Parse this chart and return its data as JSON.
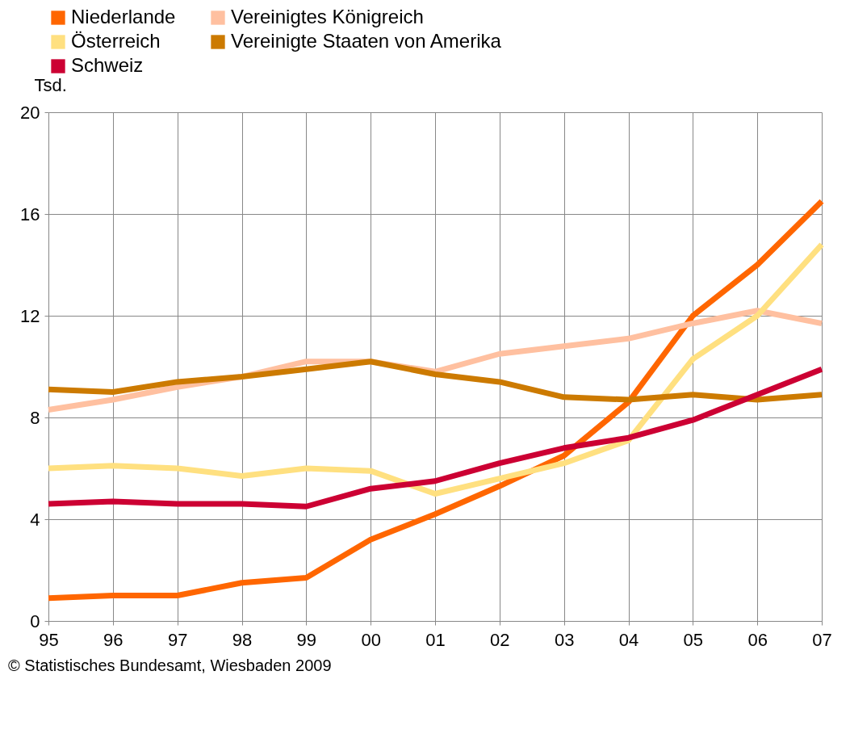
{
  "chart_data": {
    "type": "line",
    "ylabel": "Tsd.",
    "categories": [
      "95",
      "96",
      "97",
      "98",
      "99",
      "00",
      "01",
      "02",
      "03",
      "04",
      "05",
      "06",
      "07"
    ],
    "series": [
      {
        "name": "Niederlande",
        "color": "#ff6600",
        "values": [
          0.9,
          1.0,
          1.0,
          1.5,
          1.7,
          3.2,
          4.2,
          5.3,
          6.5,
          8.6,
          12.0,
          14.0,
          16.5
        ]
      },
      {
        "name": "Vereinigtes Königreich",
        "color": "#ffc0a0",
        "values": [
          8.3,
          8.7,
          9.2,
          9.6,
          10.2,
          10.2,
          9.8,
          10.5,
          10.8,
          11.1,
          11.7,
          12.2,
          11.7
        ]
      },
      {
        "name": "Österreich",
        "color": "#ffe080",
        "values": [
          6.0,
          6.1,
          6.0,
          5.7,
          6.0,
          5.9,
          5.0,
          5.6,
          6.2,
          7.1,
          10.3,
          12.0,
          14.8
        ]
      },
      {
        "name": "Vereinigte Staaten von Amerika",
        "color": "#cc7a00",
        "values": [
          9.1,
          9.0,
          9.4,
          9.6,
          9.9,
          10.2,
          9.7,
          9.4,
          8.8,
          8.7,
          8.9,
          8.7,
          8.9
        ]
      },
      {
        "name": "Schweiz",
        "color": "#cc0033",
        "values": [
          4.6,
          4.7,
          4.6,
          4.6,
          4.5,
          5.2,
          5.5,
          6.2,
          6.8,
          7.2,
          7.9,
          8.9,
          9.9
        ]
      }
    ],
    "ylim": [
      0,
      20
    ],
    "yticks": [
      0,
      4,
      8,
      12,
      16,
      20
    ],
    "grid": true,
    "legend": "top left",
    "line_style": "solid",
    "marker": "none",
    "annotations": [
      "© Statistisches Bundesamt, Wiesbaden 2009"
    ]
  }
}
